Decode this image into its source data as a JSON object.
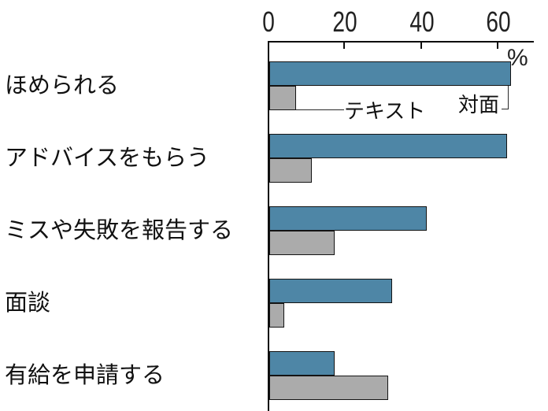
{
  "chart_data": {
    "type": "bar",
    "orientation": "horizontal",
    "categories": [
      "ほめられる",
      "アドバイスをもらう",
      "ミスや失敗を報告する",
      "面談",
      "有給を申請する"
    ],
    "series": [
      {
        "name": "対面",
        "color": "#4E86A6",
        "values": [
          63,
          62,
          41,
          32,
          17
        ]
      },
      {
        "name": "テキスト",
        "color": "#ABABAB",
        "values": [
          7,
          11,
          17,
          4,
          31
        ]
      }
    ],
    "x_axis": {
      "position": "top",
      "ticks": [
        0,
        20,
        40,
        60
      ],
      "max": 60,
      "unit": "%"
    },
    "grid": false,
    "legend": {
      "style": "inline-annotation",
      "labels": [
        "テキスト",
        "対面"
      ]
    }
  }
}
